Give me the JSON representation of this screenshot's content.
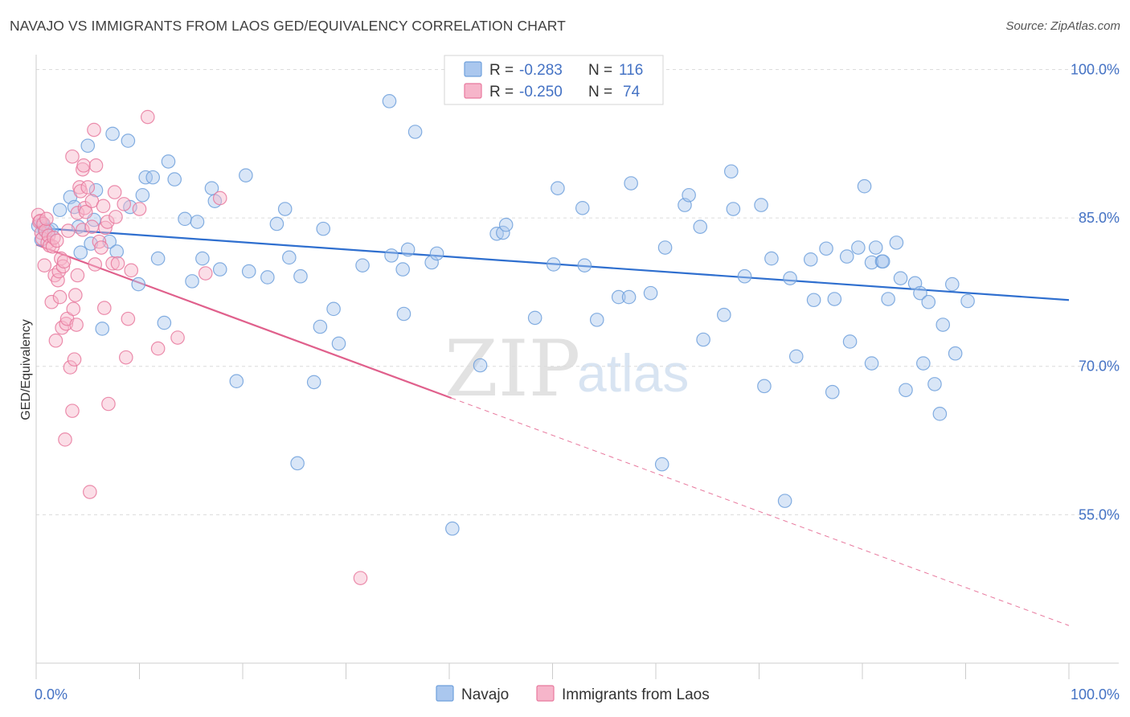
{
  "title": "NAVAJO VS IMMIGRANTS FROM LAOS GED/EQUIVALENCY CORRELATION CHART",
  "source": "Source: ZipAtlas.com",
  "watermark": {
    "zip": "ZIP",
    "atlas": "atlas"
  },
  "legend": {
    "rows": [
      {
        "r_label": "R =",
        "r_value": "-0.283",
        "n_label": "N =",
        "n_value": "116",
        "color": "#aac7ee"
      },
      {
        "r_label": "R =",
        "r_value": "-0.250",
        "n_label": "N =",
        "n_value": "74",
        "color": "#f6b5ca"
      }
    ]
  },
  "bottom_legend": [
    "Navajo",
    "Immigrants from Laos"
  ],
  "chart_data": {
    "type": "scatter",
    "title": "NAVAJO VS IMMIGRANTS FROM LAOS GED/EQUIVALENCY CORRELATION CHART",
    "xlabel": "",
    "ylabel": "GED/Equivalency",
    "x_tick_labels": [
      "0.0%",
      "100.0%"
    ],
    "y_tick_labels": [
      "100.0%",
      "85.0%",
      "70.0%",
      "55.0%"
    ],
    "xlim": [
      0,
      100
    ],
    "ylim": [
      40,
      101.5
    ],
    "y_ticks": [
      100,
      85,
      70,
      55
    ],
    "grid": "horizontal dashed",
    "legend_position": "top-center",
    "series": [
      {
        "name": "Navajo",
        "color": "#6fa0dc",
        "fill": "#aac7ee",
        "trend": {
          "x": [
            0,
            100
          ],
          "y": [
            84.0,
            76.7
          ],
          "style": "solid"
        },
        "points": [
          [
            0.2,
            84.2
          ],
          [
            0.5,
            82.8
          ],
          [
            0.6,
            84.4
          ],
          [
            0.8,
            83.9
          ],
          [
            1.2,
            83.7
          ],
          [
            1.5,
            83.8
          ],
          [
            2.3,
            85.8
          ],
          [
            3.3,
            87.1
          ],
          [
            3.7,
            86.1
          ],
          [
            4.1,
            84.1
          ],
          [
            4.3,
            81.5
          ],
          [
            5.0,
            92.3
          ],
          [
            5.3,
            82.4
          ],
          [
            5.6,
            84.8
          ],
          [
            5.8,
            87.8
          ],
          [
            6.4,
            73.8
          ],
          [
            7.1,
            82.6
          ],
          [
            7.4,
            93.5
          ],
          [
            7.8,
            81.6
          ],
          [
            8.9,
            92.8
          ],
          [
            9.1,
            86.1
          ],
          [
            9.9,
            78.3
          ],
          [
            10.3,
            87.3
          ],
          [
            10.6,
            89.1
          ],
          [
            11.3,
            89.1
          ],
          [
            11.8,
            80.9
          ],
          [
            12.4,
            74.4
          ],
          [
            12.8,
            90.7
          ],
          [
            13.4,
            88.9
          ],
          [
            14.4,
            84.9
          ],
          [
            15.1,
            78.6
          ],
          [
            15.6,
            84.6
          ],
          [
            16.1,
            80.9
          ],
          [
            17.0,
            88.0
          ],
          [
            17.3,
            86.7
          ],
          [
            17.8,
            79.8
          ],
          [
            19.4,
            68.5
          ],
          [
            20.3,
            89.3
          ],
          [
            20.6,
            79.6
          ],
          [
            22.4,
            79.0
          ],
          [
            23.3,
            84.4
          ],
          [
            24.1,
            85.9
          ],
          [
            24.5,
            81.0
          ],
          [
            25.3,
            60.2
          ],
          [
            25.6,
            79.1
          ],
          [
            26.9,
            68.4
          ],
          [
            27.5,
            74.0
          ],
          [
            27.8,
            83.9
          ],
          [
            28.8,
            75.8
          ],
          [
            29.3,
            72.3
          ],
          [
            31.6,
            80.2
          ],
          [
            34.2,
            96.8
          ],
          [
            34.4,
            81.2
          ],
          [
            35.5,
            79.8
          ],
          [
            35.6,
            75.3
          ],
          [
            36.0,
            81.8
          ],
          [
            36.7,
            93.7
          ],
          [
            38.3,
            80.5
          ],
          [
            38.8,
            81.4
          ],
          [
            40.3,
            53.6
          ],
          [
            43.0,
            70.1
          ],
          [
            44.6,
            83.4
          ],
          [
            45.2,
            83.5
          ],
          [
            45.5,
            84.3
          ],
          [
            48.3,
            74.9
          ],
          [
            49.3,
            100.1
          ],
          [
            50.1,
            80.3
          ],
          [
            50.5,
            88.0
          ],
          [
            52.9,
            86.0
          ],
          [
            53.1,
            80.2
          ],
          [
            54.3,
            74.7
          ],
          [
            55.3,
            100.3
          ],
          [
            56.4,
            77.0
          ],
          [
            57.4,
            77.0
          ],
          [
            57.6,
            88.5
          ],
          [
            59.5,
            77.4
          ],
          [
            60.6,
            60.1
          ],
          [
            60.9,
            82.0
          ],
          [
            62.8,
            86.3
          ],
          [
            63.2,
            87.3
          ],
          [
            64.3,
            84.1
          ],
          [
            64.6,
            72.7
          ],
          [
            66.6,
            75.2
          ],
          [
            67.3,
            89.7
          ],
          [
            67.5,
            85.9
          ],
          [
            68.6,
            79.1
          ],
          [
            70.2,
            86.3
          ],
          [
            70.5,
            68.0
          ],
          [
            71.2,
            80.9
          ],
          [
            72.5,
            56.4
          ],
          [
            73.0,
            78.9
          ],
          [
            73.6,
            71.0
          ],
          [
            75.0,
            80.8
          ],
          [
            75.3,
            76.7
          ],
          [
            76.5,
            81.9
          ],
          [
            77.1,
            67.4
          ],
          [
            77.3,
            76.8
          ],
          [
            78.5,
            81.1
          ],
          [
            78.8,
            72.5
          ],
          [
            79.6,
            82.0
          ],
          [
            80.2,
            88.2
          ],
          [
            80.9,
            70.3
          ],
          [
            80.9,
            80.5
          ],
          [
            81.3,
            82.0
          ],
          [
            81.9,
            80.6
          ],
          [
            82.0,
            80.6
          ],
          [
            82.5,
            76.8
          ],
          [
            83.3,
            82.5
          ],
          [
            83.7,
            78.9
          ],
          [
            84.2,
            67.6
          ],
          [
            85.1,
            78.4
          ],
          [
            85.6,
            77.4
          ],
          [
            85.9,
            70.3
          ],
          [
            86.4,
            76.5
          ],
          [
            87.0,
            68.2
          ],
          [
            87.5,
            65.2
          ],
          [
            87.8,
            74.2
          ],
          [
            88.7,
            78.3
          ],
          [
            89.0,
            71.3
          ],
          [
            90.2,
            76.6
          ]
        ]
      },
      {
        "name": "Immigrants from Laos",
        "color": "#e8799e",
        "fill": "#f6b5ca",
        "trend_solid": {
          "x": [
            0,
            40.2
          ],
          "y": [
            82.3,
            66.8
          ]
        },
        "trend_dashed": {
          "x": [
            40.2,
            100
          ],
          "y": [
            66.8,
            43.8
          ]
        },
        "points": [
          [
            0.2,
            85.3
          ],
          [
            0.3,
            84.6
          ],
          [
            0.4,
            84.7
          ],
          [
            0.5,
            83.5
          ],
          [
            0.6,
            82.9
          ],
          [
            0.7,
            84.4
          ],
          [
            0.8,
            80.2
          ],
          [
            0.9,
            83.7
          ],
          [
            1.0,
            84.9
          ],
          [
            1.1,
            82.5
          ],
          [
            1.2,
            83.2
          ],
          [
            1.3,
            82.2
          ],
          [
            1.5,
            76.5
          ],
          [
            1.6,
            82.1
          ],
          [
            1.7,
            83.0
          ],
          [
            1.8,
            79.2
          ],
          [
            1.9,
            72.6
          ],
          [
            2.0,
            82.7
          ],
          [
            2.1,
            78.7
          ],
          [
            2.2,
            79.6
          ],
          [
            2.3,
            77.0
          ],
          [
            2.4,
            80.9
          ],
          [
            2.5,
            73.9
          ],
          [
            2.6,
            80.1
          ],
          [
            2.7,
            80.6
          ],
          [
            2.8,
            62.6
          ],
          [
            2.9,
            74.3
          ],
          [
            3.0,
            74.8
          ],
          [
            3.1,
            83.7
          ],
          [
            3.3,
            69.9
          ],
          [
            3.5,
            65.5
          ],
          [
            3.5,
            91.2
          ],
          [
            3.6,
            75.8
          ],
          [
            3.7,
            70.7
          ],
          [
            3.8,
            77.2
          ],
          [
            3.9,
            74.2
          ],
          [
            4.0,
            79.2
          ],
          [
            4.0,
            85.5
          ],
          [
            4.2,
            88.1
          ],
          [
            4.3,
            87.7
          ],
          [
            4.5,
            83.8
          ],
          [
            4.5,
            89.9
          ],
          [
            4.6,
            90.3
          ],
          [
            4.7,
            86.0
          ],
          [
            4.8,
            85.6
          ],
          [
            5.0,
            88.1
          ],
          [
            5.2,
            57.3
          ],
          [
            5.4,
            84.1
          ],
          [
            5.4,
            86.7
          ],
          [
            5.6,
            93.9
          ],
          [
            5.7,
            80.3
          ],
          [
            5.8,
            90.3
          ],
          [
            6.1,
            82.6
          ],
          [
            6.3,
            82.0
          ],
          [
            6.5,
            86.2
          ],
          [
            6.6,
            75.9
          ],
          [
            6.7,
            84.0
          ],
          [
            6.9,
            84.6
          ],
          [
            7.0,
            66.2
          ],
          [
            7.4,
            80.4
          ],
          [
            7.6,
            87.6
          ],
          [
            7.7,
            85.1
          ],
          [
            7.9,
            80.4
          ],
          [
            8.5,
            86.4
          ],
          [
            8.7,
            70.9
          ],
          [
            8.9,
            74.8
          ],
          [
            9.2,
            79.7
          ],
          [
            10.0,
            85.9
          ],
          [
            10.8,
            95.2
          ],
          [
            11.8,
            71.8
          ],
          [
            13.7,
            72.9
          ],
          [
            16.4,
            79.4
          ],
          [
            17.8,
            87.0
          ],
          [
            31.4,
            48.6
          ]
        ]
      }
    ]
  }
}
